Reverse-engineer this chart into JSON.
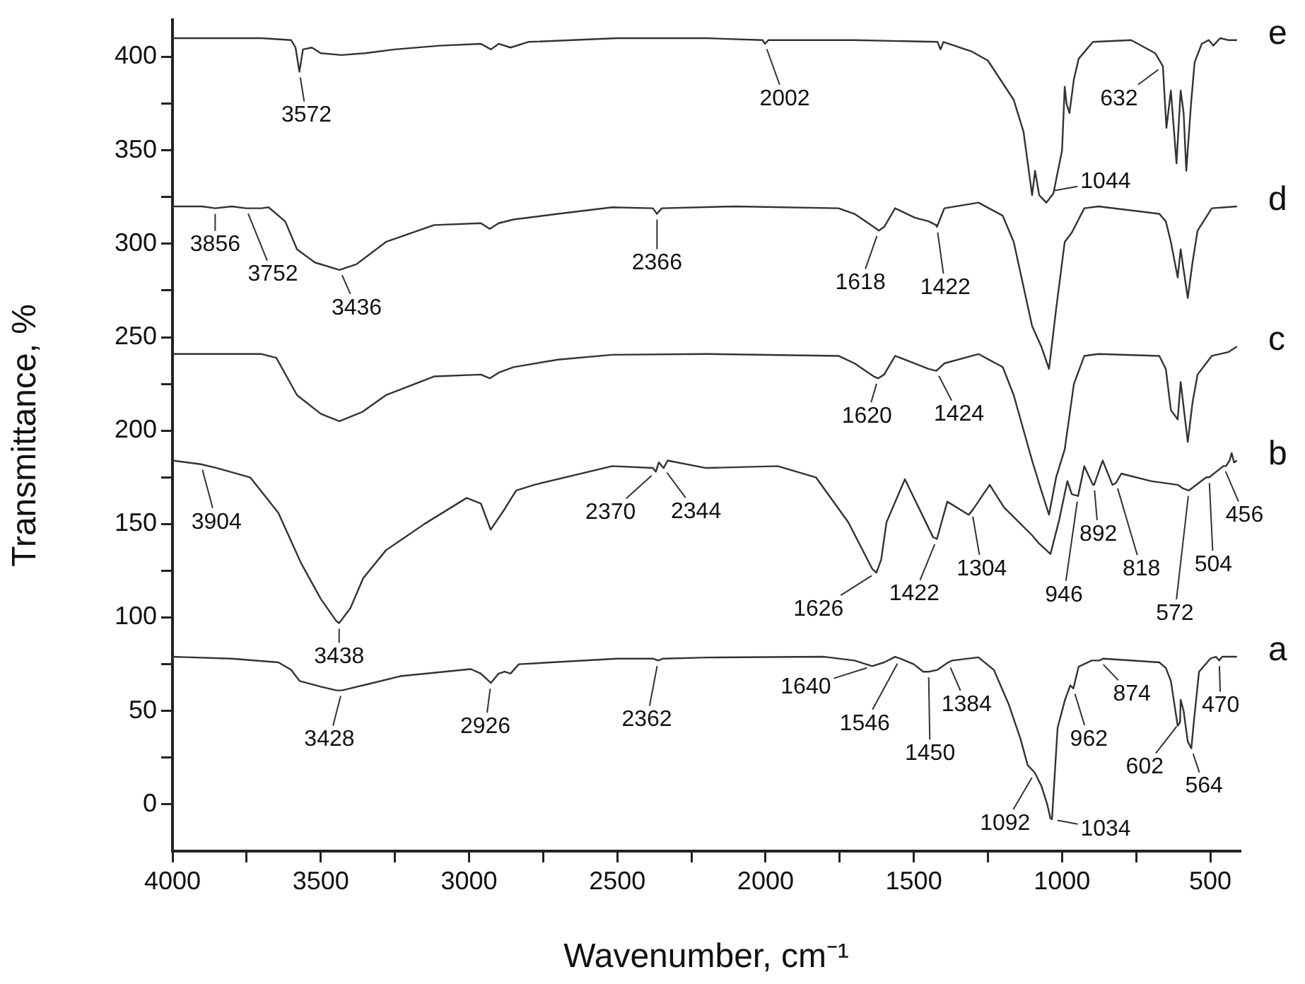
{
  "chart_data": {
    "type": "line",
    "xlabel": "Wavenumber, cm⁻¹",
    "ylabel": "Transmittance, %",
    "xlim": [
      4000,
      400
    ],
    "ylim": [
      -25,
      420
    ],
    "xticks": [
      4000,
      {
        "value": 3750,
        "label": null
      },
      3500,
      {
        "value": 3250,
        "label": null
      },
      3000,
      {
        "value": 2750,
        "label": null
      },
      2500,
      {
        "value": 2250,
        "label": null
      },
      2000,
      {
        "value": 1750,
        "label": null
      },
      1500,
      {
        "value": 1250,
        "label": null
      },
      1000,
      {
        "value": 750,
        "label": null
      },
      500
    ],
    "yticks": [
      0,
      {
        "value": 25,
        "label": null
      },
      50,
      {
        "value": 75,
        "label": null
      },
      100,
      {
        "value": 125,
        "label": null
      },
      150,
      {
        "value": 175,
        "label": null
      },
      200,
      {
        "value": 225,
        "label": null
      },
      250,
      {
        "value": 275,
        "label": null
      },
      300,
      {
        "value": 325,
        "label": null
      },
      350,
      {
        "value": 375,
        "label": null
      },
      400
    ],
    "grid": false,
    "legend": false,
    "marker": "none",
    "line_style": "solid",
    "series": [
      {
        "name": "e",
        "color": "#333333",
        "x": [
          4000,
          3700,
          3600,
          3585,
          3572,
          3560,
          3530,
          3500,
          3430,
          3350,
          3250,
          3100,
          2960,
          2926,
          2900,
          2860,
          2800,
          2500,
          2200,
          2010,
          2002,
          1990,
          1700,
          1420,
          1410,
          1400,
          1306,
          1250,
          1163,
          1130,
          1101,
          1091,
          1077,
          1053,
          1029,
          1000,
          991,
          985,
          975,
          960,
          944,
          896,
          767,
          686,
          660,
          648,
          633,
          614,
          600,
          590,
          581,
          565,
          553,
          529,
          505,
          490,
          467,
          440,
          410
        ],
        "values": [
          410,
          410,
          409,
          405,
          392,
          404,
          405,
          402,
          401,
          402,
          404,
          406,
          407,
          404,
          407,
          405,
          408,
          410,
          410,
          409,
          407,
          409,
          409,
          408,
          404,
          408,
          403,
          398,
          377,
          360,
          326,
          339,
          326,
          322,
          327,
          350,
          384,
          375,
          370,
          388,
          399,
          408,
          409,
          402,
          395,
          362,
          382,
          343,
          382,
          370,
          339,
          375,
          397,
          407,
          409,
          406,
          410,
          409,
          409
        ]
      },
      {
        "name": "d",
        "color": "#333333",
        "x": [
          4000,
          3900,
          3856,
          3800,
          3752,
          3700,
          3676,
          3620,
          3580,
          3520,
          3437,
          3380,
          3280,
          3118,
          2960,
          2930,
          2900,
          2850,
          2700,
          2517,
          2380,
          2366,
          2350,
          2102,
          1754,
          1700,
          1635,
          1618,
          1600,
          1563,
          1497,
          1450,
          1425,
          1422,
          1397,
          1282,
          1200,
          1163,
          1101,
          1070,
          1044,
          1020,
          991,
          967,
          925,
          877,
          672,
          650,
          633,
          610,
          600,
          576,
          560,
          543,
          495,
          410
        ],
        "values": [
          320,
          320,
          319,
          320,
          319,
          319,
          319.5,
          312,
          297,
          290,
          286,
          289,
          301,
          310,
          311,
          308,
          311,
          313,
          316,
          319.5,
          319,
          316,
          319,
          320,
          319,
          316,
          309,
          307,
          309,
          319,
          314,
          312,
          310,
          309,
          319,
          322,
          315,
          301,
          256,
          245,
          233,
          265,
          301,
          306,
          319,
          320,
          316,
          312,
          301,
          282,
          297,
          271,
          290,
          307,
          319,
          320
        ]
      },
      {
        "name": "c",
        "color": "#333333",
        "x": [
          4000,
          3700,
          3650,
          3580,
          3500,
          3437,
          3360,
          3280,
          3118,
          2960,
          2930,
          2900,
          2850,
          2700,
          2517,
          2200,
          1754,
          1700,
          1635,
          1620,
          1600,
          1563,
          1497,
          1450,
          1424,
          1397,
          1282,
          1200,
          1163,
          1101,
          1070,
          1044,
          1020,
          991,
          960,
          925,
          877,
          672,
          650,
          633,
          610,
          600,
          576,
          560,
          543,
          495,
          440,
          410
        ],
        "values": [
          241,
          241,
          239,
          219,
          209,
          205,
          210,
          219,
          229,
          230,
          228,
          231,
          234,
          238,
          240.6,
          241,
          240,
          236,
          229,
          228,
          230,
          240,
          236,
          233,
          232,
          236,
          241,
          234,
          219,
          184,
          168,
          155,
          175,
          190,
          225,
          240,
          241,
          240,
          233,
          211,
          206,
          226,
          194,
          215,
          230,
          240,
          242,
          245
        ]
      },
      {
        "name": "b",
        "color": "#333333",
        "x": [
          4000,
          3904,
          3850,
          3738,
          3643,
          3566,
          3500,
          3447,
          3438,
          3400,
          3357,
          3280,
          3151,
          3008,
          2960,
          2927,
          2880,
          2841,
          2780,
          2517,
          2380,
          2370,
          2360,
          2344,
          2330,
          2200,
          1959,
          1830,
          1721,
          1640,
          1626,
          1610,
          1592,
          1530,
          1435,
          1422,
          1387,
          1315,
          1304,
          1244,
          1196,
          1101,
          1080,
          1039,
          1010,
          982,
          967,
          946,
          925,
          896,
          892,
          863,
          830,
          818,
          800,
          700,
          610,
          591,
          572,
          514,
          504,
          456,
          447,
          435,
          428,
          420,
          410
        ],
        "values": [
          184,
          182,
          180,
          175,
          156,
          129,
          110,
          98,
          97,
          105,
          121,
          136,
          150,
          164,
          161,
          147,
          158,
          168,
          171,
          181,
          180,
          178,
          183,
          180,
          184,
          180,
          181,
          175,
          151,
          126,
          124,
          131,
          151,
          174,
          143,
          142,
          162,
          155,
          157,
          171,
          159,
          144,
          140,
          134,
          152,
          173,
          166,
          165,
          181,
          171,
          171,
          184,
          171,
          172,
          177,
          173,
          171,
          169,
          168,
          175,
          175,
          181,
          181,
          184,
          188,
          183,
          184
        ]
      },
      {
        "name": "a",
        "color": "#333333",
        "x": [
          4000,
          3800,
          3643,
          3600,
          3571,
          3500,
          3447,
          3428,
          3350,
          3232,
          2994,
          2960,
          2926,
          2900,
          2880,
          2860,
          2832,
          2500,
          2380,
          2362,
          2345,
          2199,
          1802,
          1700,
          1640,
          1600,
          1563,
          1546,
          1500,
          1468,
          1450,
          1420,
          1384,
          1370,
          1282,
          1230,
          1180,
          1140,
          1116,
          1092,
          1070,
          1050,
          1039,
          1034,
          1015,
          990,
          972,
          962,
          944,
          900,
          880,
          874,
          860,
          672,
          650,
          633,
          610,
          602,
          600,
          590,
          576,
          564,
          555,
          538,
          500,
          481,
          470,
          460,
          410
        ],
        "values": [
          79,
          78,
          76,
          72,
          66,
          63,
          61,
          61,
          64,
          68.6,
          72.4,
          70,
          65,
          70,
          71,
          70,
          75,
          78,
          78,
          77,
          78,
          78.6,
          79,
          77,
          74,
          76,
          79,
          78,
          75,
          71,
          71,
          72,
          76,
          77,
          78.7,
          72,
          53.6,
          35,
          21,
          17,
          10,
          0,
          -7.5,
          -8,
          41,
          56,
          63.7,
          62,
          73.7,
          77,
          77,
          77,
          78,
          76,
          73,
          66,
          42,
          44,
          56,
          50,
          33.6,
          30,
          45,
          71,
          78,
          79,
          77,
          79,
          79
        ]
      }
    ],
    "annotations": [
      {
        "text": "3572",
        "x": 3572,
        "y": 392
      },
      {
        "text": "2002",
        "x": 2002,
        "y": 407
      },
      {
        "text": "632",
        "x": 660,
        "y": 395
      },
      {
        "text": "1044",
        "x": 1044,
        "y": 328
      },
      {
        "text": "3856",
        "x": 3856,
        "y": 319
      },
      {
        "text": "3752",
        "x": 3752,
        "y": 319
      },
      {
        "text": "3436",
        "x": 3436,
        "y": 286
      },
      {
        "text": "2366",
        "x": 2366,
        "y": 316
      },
      {
        "text": "1618",
        "x": 1618,
        "y": 307
      },
      {
        "text": "1422",
        "x": 1422,
        "y": 309
      },
      {
        "text": "1620",
        "x": 1620,
        "y": 228
      },
      {
        "text": "1424",
        "x": 1424,
        "y": 232
      },
      {
        "text": "3904",
        "x": 3904,
        "y": 182
      },
      {
        "text": "3438",
        "x": 3438,
        "y": 97
      },
      {
        "text": "2370",
        "x": 2370,
        "y": 178
      },
      {
        "text": "2344",
        "x": 2344,
        "y": 180
      },
      {
        "text": "1626",
        "x": 1626,
        "y": 124
      },
      {
        "text": "1422",
        "x": 1422,
        "y": 142
      },
      {
        "text": "1304",
        "x": 1304,
        "y": 157
      },
      {
        "text": "946",
        "x": 946,
        "y": 165
      },
      {
        "text": "892",
        "x": 892,
        "y": 171
      },
      {
        "text": "818",
        "x": 818,
        "y": 172
      },
      {
        "text": "572",
        "x": 572,
        "y": 168
      },
      {
        "text": "504",
        "x": 504,
        "y": 175
      },
      {
        "text": "456",
        "x": 456,
        "y": 181
      },
      {
        "text": "3428",
        "x": 3428,
        "y": 61
      },
      {
        "text": "2926",
        "x": 2926,
        "y": 65
      },
      {
        "text": "2362",
        "x": 2362,
        "y": 77
      },
      {
        "text": "1640",
        "x": 1640,
        "y": 74
      },
      {
        "text": "1546",
        "x": 1546,
        "y": 78
      },
      {
        "text": "1450",
        "x": 1450,
        "y": 71
      },
      {
        "text": "1384",
        "x": 1384,
        "y": 76
      },
      {
        "text": "1092",
        "x": 1092,
        "y": 17
      },
      {
        "text": "1034",
        "x": 1034,
        "y": -8
      },
      {
        "text": "962",
        "x": 962,
        "y": 62
      },
      {
        "text": "874",
        "x": 874,
        "y": 77
      },
      {
        "text": "602",
        "x": 602,
        "y": 44
      },
      {
        "text": "564",
        "x": 564,
        "y": 30
      },
      {
        "text": "470",
        "x": 470,
        "y": 77
      }
    ]
  }
}
